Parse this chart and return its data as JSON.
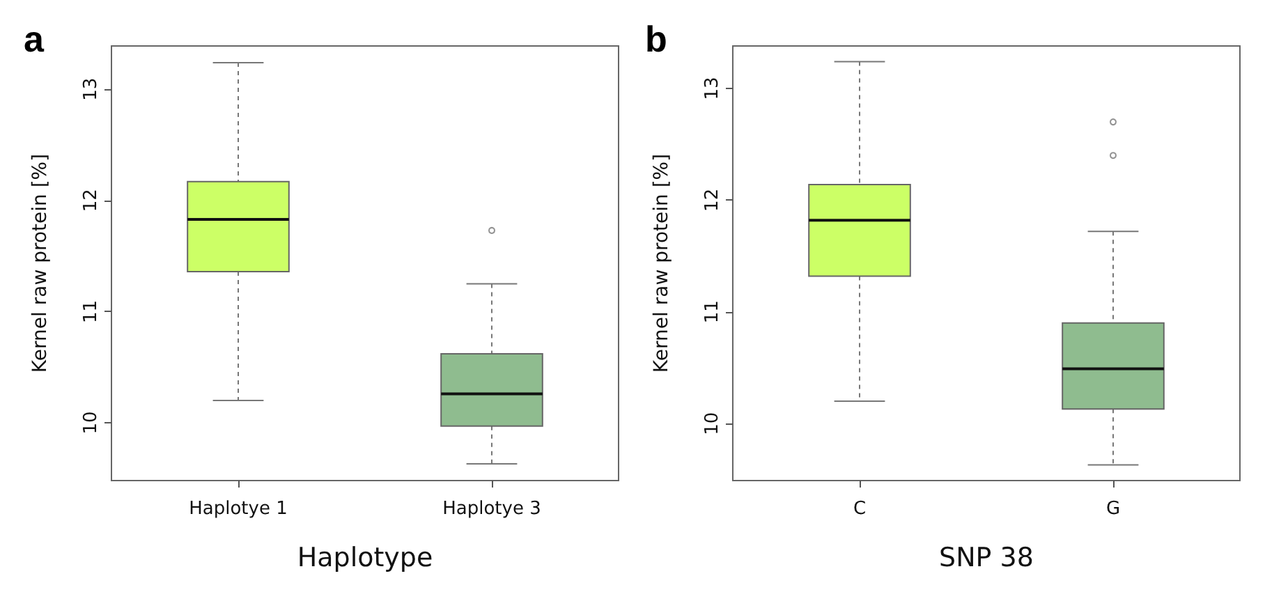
{
  "chart_data": [
    {
      "type": "box",
      "title": "a",
      "xlabel": "Haplotype",
      "ylabel": "Kernel raw protein [%]",
      "categories": [
        "Haplotye 1",
        "Haplotye 3"
      ],
      "colors": [
        "#ccff66",
        "#8fbc8f"
      ],
      "ylim": [
        9.48,
        13.39
      ],
      "yticks": [
        10,
        11,
        12,
        13
      ],
      "boxes": [
        {
          "low": 10.2,
          "q1": 11.36,
          "median": 11.83,
          "q3": 12.17,
          "high": 13.24
        },
        {
          "low": 9.63,
          "q1": 9.97,
          "median": 10.26,
          "q3": 10.62,
          "high": 11.25,
          "outliers": [
            11.73
          ]
        }
      ]
    },
    {
      "type": "box",
      "title": "b",
      "xlabel": "SNP 38",
      "ylabel": "Kernel raw protein [%]",
      "categories": [
        "C",
        "G"
      ],
      "colors": [
        "#ccff66",
        "#8fbc8f"
      ],
      "ylim": [
        9.49,
        13.38
      ],
      "yticks": [
        10,
        11,
        12,
        13
      ],
      "boxes": [
        {
          "low": 10.2,
          "q1": 11.32,
          "median": 11.82,
          "q3": 12.14,
          "high": 13.24
        },
        {
          "low": 9.63,
          "q1": 10.13,
          "median": 10.49,
          "q3": 10.9,
          "high": 11.72,
          "outliers": [
            12.4,
            12.7
          ]
        }
      ]
    }
  ]
}
